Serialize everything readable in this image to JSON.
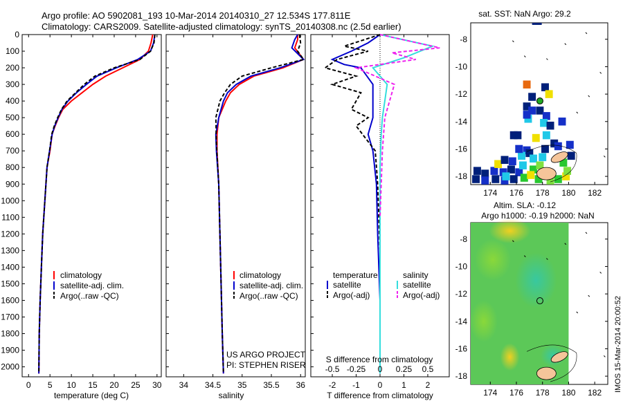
{
  "header": {
    "line1": "Argo profile: AO 5902081_193 10-Mar-2014 20140310_27 12.534S 177.811E",
    "line2": "Climatology: CARS2009. Satellite-adjusted climatology: synTS_20140308.nc (2.5d earlier)"
  },
  "side_stamp": "IMOS 15-Mar-2014 20:00:52",
  "colors": {
    "climatology": "#ff0000",
    "satellite": "#0000cc",
    "argo": "#000000",
    "satellite_salinity": "#33dddd",
    "argo_salinity": "#ee22ee"
  },
  "chart_data": [
    {
      "type": "line",
      "id": "temperature",
      "xlabel": "temperature (deg C)",
      "xlim": [
        -1.5,
        31
      ],
      "ylim": [
        2060,
        0
      ],
      "xticks": [
        0,
        5,
        10,
        15,
        20,
        25,
        30
      ],
      "yticks": [
        0,
        100,
        200,
        300,
        400,
        500,
        600,
        700,
        800,
        900,
        1000,
        1100,
        1200,
        1300,
        1400,
        1500,
        1600,
        1700,
        1800,
        1900,
        2000
      ],
      "legend": [
        "climatology",
        "satellite-adj. clim.",
        "Argo(..raw -QC)"
      ],
      "series": [
        {
          "name": "climatology",
          "color": "#ff0000",
          "dash": "",
          "x": [
            29.0,
            28.6,
            28.0,
            26.0,
            22.0,
            18.0,
            15.0,
            12.5,
            10.0,
            8.0,
            7.0,
            6.2,
            5.5,
            5.0,
            4.3,
            3.8,
            3.3,
            3.0,
            2.7,
            2.5,
            2.4
          ],
          "y": [
            0,
            50,
            100,
            150,
            200,
            250,
            300,
            350,
            400,
            450,
            500,
            550,
            600,
            700,
            800,
            1000,
            1200,
            1400,
            1600,
            1800,
            2040
          ]
        },
        {
          "name": "satellite-adj. clim.",
          "color": "#0000cc",
          "dash": "",
          "x": [
            29.5,
            29.2,
            28.5,
            25.5,
            20.5,
            16.0,
            13.5,
            11.2,
            9.2,
            7.8,
            6.9,
            6.1,
            5.5,
            4.9,
            4.3,
            3.8,
            3.3,
            3.0,
            2.7,
            2.5,
            2.4
          ],
          "y": [
            0,
            50,
            100,
            150,
            200,
            250,
            300,
            350,
            400,
            450,
            500,
            550,
            600,
            700,
            800,
            1000,
            1200,
            1400,
            1600,
            1800,
            2040
          ]
        },
        {
          "name": "Argo(..raw -QC)",
          "color": "#000000",
          "dash": "5,3",
          "x": [
            29.5,
            29.3,
            28.5,
            26.0,
            20.0,
            15.5,
            13.0,
            11.0,
            9.0,
            7.7,
            6.8,
            6.0,
            5.4,
            4.9,
            4.3,
            3.8,
            3.3,
            3.0,
            2.7,
            2.5,
            2.4
          ],
          "y": [
            0,
            50,
            100,
            150,
            200,
            250,
            300,
            350,
            400,
            450,
            500,
            550,
            600,
            700,
            800,
            1000,
            1200,
            1400,
            1600,
            1800,
            2040
          ]
        }
      ]
    },
    {
      "type": "line",
      "id": "salinity",
      "xlabel": "salinity",
      "xlim": [
        33.7,
        36.08
      ],
      "ylim": [
        2060,
        0
      ],
      "xticks": [
        34,
        34.5,
        35,
        35.5,
        36
      ],
      "legend": [
        "climatology",
        "satellite-adj. clim.",
        "Argo(..raw -QC)"
      ],
      "annotation": [
        "US ARGO PROJECT",
        "PI: STEPHEN RISER"
      ],
      "series": [
        {
          "name": "climatology",
          "color": "#ff0000",
          "dash": "",
          "x": [
            35.95,
            35.95,
            35.9,
            36.05,
            35.7,
            35.2,
            34.95,
            34.8,
            34.72,
            34.6,
            34.57,
            34.57,
            34.6,
            34.62,
            34.64,
            34.66,
            34.68
          ],
          "y": [
            0,
            30,
            80,
            150,
            200,
            250,
            300,
            350,
            400,
            500,
            600,
            700,
            900,
            1200,
            1500,
            1800,
            2040
          ]
        },
        {
          "name": "satellite-adj. clim.",
          "color": "#0000cc",
          "dash": "",
          "x": [
            35.95,
            35.9,
            35.85,
            36.05,
            35.65,
            35.15,
            34.9,
            34.75,
            34.68,
            34.6,
            34.55,
            34.56,
            34.6,
            34.62,
            34.64,
            34.66,
            34.68
          ],
          "y": [
            0,
            30,
            80,
            150,
            200,
            250,
            300,
            350,
            400,
            500,
            600,
            700,
            900,
            1200,
            1500,
            1800,
            2040
          ]
        },
        {
          "name": "Argo(..raw -QC)",
          "color": "#000000",
          "dash": "5,3",
          "x": [
            35.98,
            36.0,
            35.95,
            36.05,
            35.5,
            35.0,
            34.8,
            34.7,
            34.62,
            34.55,
            34.56,
            34.6,
            34.62,
            34.64,
            34.66,
            34.68
          ],
          "y": [
            0,
            50,
            100,
            150,
            200,
            250,
            300,
            350,
            400,
            500,
            650,
            900,
            1200,
            1500,
            1800,
            2040
          ]
        }
      ]
    },
    {
      "type": "line",
      "id": "difference",
      "xlabel": "T difference from climatology",
      "xlabel2": "S difference from climatology",
      "xlim": [
        -2.9,
        2.9
      ],
      "ylim": [
        2060,
        0
      ],
      "xticks": [
        -2,
        -1,
        0,
        1,
        2
      ],
      "xticks_s": [
        -0.5,
        -0.25,
        0,
        0.25,
        0.5
      ],
      "legend": {
        "headers": [
          "temperature",
          "salinity"
        ],
        "temperature": [
          "satellite",
          "Argo(-adj)"
        ],
        "salinity": [
          "satellite",
          "Argo(-adj)"
        ]
      },
      "series": [
        {
          "name": "satellite",
          "group": "temperature",
          "color": "#0000cc",
          "dash": "",
          "x": [
            0.0,
            -0.5,
            -1.2,
            -2.0,
            -1.5,
            -0.8,
            -0.3,
            -0.3,
            -0.3,
            -0.5,
            -0.3,
            -0.15,
            -0.1,
            0.0,
            0.0
          ],
          "y": [
            0,
            50,
            100,
            150,
            180,
            200,
            300,
            400,
            500,
            600,
            700,
            900,
            1200,
            1600,
            2040
          ]
        },
        {
          "name": "Argo(-adj)",
          "group": "temperature",
          "color": "#000000",
          "dash": "5,3",
          "x": [
            0.0,
            -1.5,
            -0.5,
            -1.8,
            -2.3,
            -1.0,
            -2.0,
            -0.8,
            -1.2,
            -0.5,
            -1.0,
            -0.2,
            -0.1,
            0.0,
            0.0
          ],
          "y": [
            0,
            70,
            100,
            150,
            200,
            250,
            300,
            350,
            450,
            500,
            550,
            700,
            900,
            1300,
            2040
          ]
        },
        {
          "name": "satellite",
          "group": "salinity",
          "color": "#33dddd",
          "dash": "",
          "x": [
            0.0,
            2.2,
            1.0,
            -0.3,
            0.3,
            0.2,
            0.1,
            0.05,
            0.0,
            0.0,
            0.0
          ],
          "y": [
            0,
            70,
            140,
            200,
            300,
            400,
            500,
            600,
            800,
            1200,
            2040
          ]
        },
        {
          "name": "Argo(-adj)",
          "group": "salinity",
          "color": "#ee22ee",
          "dash": "5,3",
          "x": [
            0.0,
            2.5,
            0.5,
            1.5,
            -1.0,
            -0.2,
            0.6,
            0.4,
            0.2,
            0.1,
            0.0
          ],
          "y": [
            0,
            80,
            110,
            150,
            200,
            250,
            300,
            400,
            500,
            700,
            1100
          ]
        }
      ]
    },
    {
      "type": "heatmap",
      "id": "sst_map",
      "title": "sat. SST: NaN Argo: 29.2",
      "xlim": [
        172.5,
        183
      ],
      "ylim": [
        -18.6,
        -6.8
      ],
      "xticks": [
        174,
        176,
        178,
        180,
        182
      ],
      "yticks": [
        -8,
        -10,
        -12,
        -14,
        -16,
        -18
      ],
      "argo_position": [
        177.8,
        -12.5
      ]
    },
    {
      "type": "heatmap",
      "id": "sla_map",
      "title_line1": "Altim. SLA: -0.12",
      "title_line2": "Argo h1000: -0.19 h2000: NaN",
      "xlim": [
        172.5,
        183
      ],
      "ylim": [
        -18.6,
        -6.8
      ],
      "xticks": [
        174,
        176,
        178,
        180,
        182
      ],
      "yticks": [
        -8,
        -10,
        -12,
        -14,
        -16,
        -18
      ],
      "argo_position": [
        177.8,
        -12.5
      ]
    }
  ]
}
